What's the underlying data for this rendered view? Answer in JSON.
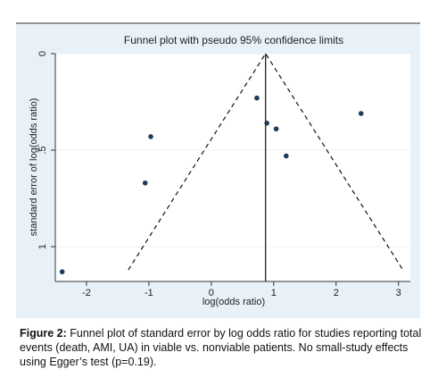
{
  "chart_data": {
    "type": "scatter",
    "title": "Funnel plot with pseudo 95% confidence limits",
    "x_label": "log(odds ratio)",
    "y_label": "standard error of log(odds ratio)",
    "series": [
      {
        "color": "#1f3a5a",
        "x": [
          0.73,
          0.89,
          1.04,
          1.2,
          2.4,
          -0.97,
          -1.06,
          -2.39
        ],
        "values": [
          0.23,
          0.36,
          0.39,
          0.53,
          0.31,
          0.43,
          0.67,
          1.13
        ]
      }
    ],
    "lines": [
      {
        "x": [
          -1.33,
          0.87,
          3.07
        ],
        "y": [
          1.12,
          0,
          1.12
        ],
        "dashed": true
      },
      {
        "x": [
          0.87,
          0.87
        ],
        "y": [
          0,
          1.18
        ],
        "dashed": false
      }
    ],
    "xlim": [
      -2.5,
      3.19
    ],
    "xticks": [
      -2,
      -1,
      0,
      1,
      2,
      3
    ],
    "ylim": [
      0,
      1.18
    ],
    "y_reversed": true,
    "yticks": [
      0,
      {
        "value": 0.5,
        "label": ".5"
      },
      1
    ],
    "grid": true
  },
  "caption": {
    "label": "Figure 2:",
    "text": " Funnel plot of standard error by log odds ratio for studies reporting total events (death, AMI, UA) in viable vs. nonviable patients. No small-study effects using Egger’s test (p=0.19)."
  }
}
